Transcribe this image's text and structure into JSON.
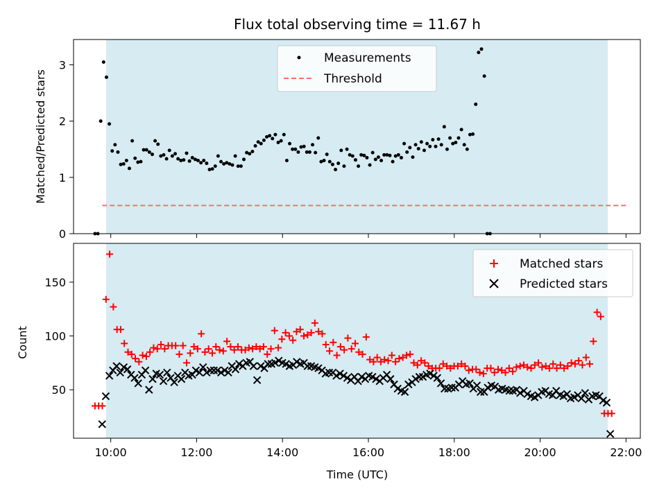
{
  "chart_data": [
    {
      "type": "scatter",
      "title": "Flux total observing time = 11.67 h",
      "xlabel": "",
      "ylabel": "Matched/Predicted stars",
      "xlim": [
        "09:08",
        "22:20"
      ],
      "ylim": [
        0,
        3.45
      ],
      "yticks": [
        "0",
        "1",
        "2",
        "3"
      ],
      "grid": false,
      "legend_position": "upper center",
      "shaded_span": [
        "09:50",
        "21:30"
      ],
      "shade_color": "#add8e6",
      "series": [
        {
          "name": "Measurements",
          "marker": "point",
          "color": "#000000",
          "points": [
            [
              "09:38",
              0
            ],
            [
              "09:42",
              0
            ],
            [
              "09:46",
              2.0
            ],
            [
              "09:50",
              3.05
            ],
            [
              "09:54",
              2.78
            ],
            [
              "09:58",
              1.95
            ],
            [
              "10:02",
              1.47
            ],
            [
              "10:06",
              1.58
            ],
            [
              "10:10",
              1.45
            ],
            [
              "10:14",
              1.23
            ],
            [
              "10:18",
              1.24
            ],
            [
              "10:22",
              1.3
            ],
            [
              "10:26",
              1.16
            ],
            [
              "10:30",
              1.65
            ],
            [
              "10:34",
              1.34
            ],
            [
              "10:38",
              1.27
            ],
            [
              "10:42",
              1.28
            ],
            [
              "10:46",
              1.49
            ],
            [
              "10:50",
              1.49
            ],
            [
              "10:54",
              1.45
            ],
            [
              "10:58",
              1.41
            ],
            [
              "11:02",
              1.65
            ],
            [
              "11:06",
              1.59
            ],
            [
              "11:10",
              1.38
            ],
            [
              "11:14",
              1.4
            ],
            [
              "11:18",
              1.33
            ],
            [
              "11:22",
              1.48
            ],
            [
              "11:26",
              1.38
            ],
            [
              "11:30",
              1.42
            ],
            [
              "11:34",
              1.33
            ],
            [
              "11:38",
              1.3
            ],
            [
              "11:42",
              1.31
            ],
            [
              "11:46",
              1.43
            ],
            [
              "11:50",
              1.29
            ],
            [
              "11:54",
              1.35
            ],
            [
              "11:58",
              1.32
            ],
            [
              "12:02",
              1.3
            ],
            [
              "12:06",
              1.26
            ],
            [
              "12:10",
              1.3
            ],
            [
              "12:14",
              1.25
            ],
            [
              "12:18",
              1.14
            ],
            [
              "12:22",
              1.15
            ],
            [
              "12:26",
              1.2
            ],
            [
              "12:30",
              1.38
            ],
            [
              "12:34",
              1.28
            ],
            [
              "12:38",
              1.24
            ],
            [
              "12:42",
              1.26
            ],
            [
              "12:46",
              1.24
            ],
            [
              "12:50",
              1.22
            ],
            [
              "12:54",
              1.38
            ],
            [
              "12:58",
              1.2
            ],
            [
              "13:02",
              1.2
            ],
            [
              "13:06",
              1.32
            ],
            [
              "13:10",
              1.44
            ],
            [
              "13:14",
              1.42
            ],
            [
              "13:18",
              1.46
            ],
            [
              "13:22",
              1.56
            ],
            [
              "13:26",
              1.63
            ],
            [
              "13:30",
              1.6
            ],
            [
              "13:34",
              1.66
            ],
            [
              "13:38",
              1.72
            ],
            [
              "13:42",
              1.74
            ],
            [
              "13:46",
              1.69
            ],
            [
              "13:50",
              1.76
            ],
            [
              "13:54",
              1.62
            ],
            [
              "13:58",
              1.65
            ],
            [
              "14:02",
              1.76
            ],
            [
              "14:06",
              1.3
            ],
            [
              "14:10",
              1.6
            ],
            [
              "14:14",
              1.5
            ],
            [
              "14:18",
              1.5
            ],
            [
              "14:22",
              1.45
            ],
            [
              "14:26",
              1.54
            ],
            [
              "14:30",
              1.55
            ],
            [
              "14:34",
              1.45
            ],
            [
              "14:38",
              1.45
            ],
            [
              "14:42",
              1.58
            ],
            [
              "14:46",
              1.44
            ],
            [
              "14:50",
              1.7
            ],
            [
              "14:54",
              1.28
            ],
            [
              "14:58",
              1.3
            ],
            [
              "15:02",
              1.41
            ],
            [
              "15:06",
              1.28
            ],
            [
              "15:10",
              1.23
            ],
            [
              "15:14",
              1.14
            ],
            [
              "15:18",
              1.25
            ],
            [
              "15:22",
              1.48
            ],
            [
              "15:26",
              1.2
            ],
            [
              "15:30",
              1.5
            ],
            [
              "15:34",
              1.4
            ],
            [
              "15:38",
              1.38
            ],
            [
              "15:42",
              1.31
            ],
            [
              "15:46",
              1.2
            ],
            [
              "15:50",
              1.4
            ],
            [
              "15:54",
              1.39
            ],
            [
              "15:58",
              1.35
            ],
            [
              "16:02",
              1.22
            ],
            [
              "16:06",
              1.44
            ],
            [
              "16:10",
              1.32
            ],
            [
              "16:14",
              1.36
            ],
            [
              "16:18",
              1.3
            ],
            [
              "16:22",
              1.4
            ],
            [
              "16:26",
              1.4
            ],
            [
              "16:30",
              1.39
            ],
            [
              "16:34",
              1.28
            ],
            [
              "16:38",
              1.38
            ],
            [
              "16:42",
              1.4
            ],
            [
              "16:46",
              1.35
            ],
            [
              "16:50",
              1.6
            ],
            [
              "16:54",
              1.45
            ],
            [
              "16:58",
              1.53
            ],
            [
              "17:02",
              1.36
            ],
            [
              "17:06",
              1.58
            ],
            [
              "17:10",
              1.51
            ],
            [
              "17:14",
              1.63
            ],
            [
              "17:18",
              1.48
            ],
            [
              "17:22",
              1.6
            ],
            [
              "17:26",
              1.55
            ],
            [
              "17:30",
              1.67
            ],
            [
              "17:34",
              1.55
            ],
            [
              "17:38",
              1.68
            ],
            [
              "17:42",
              1.58
            ],
            [
              "17:46",
              1.9
            ],
            [
              "17:50",
              1.5
            ],
            [
              "17:54",
              1.7
            ],
            [
              "17:58",
              1.6
            ],
            [
              "18:02",
              1.62
            ],
            [
              "18:06",
              1.7
            ],
            [
              "18:10",
              1.85
            ],
            [
              "18:14",
              1.58
            ],
            [
              "18:18",
              1.5
            ],
            [
              "18:22",
              1.76
            ],
            [
              "18:26",
              1.77
            ],
            [
              "18:30",
              2.3
            ],
            [
              "18:34",
              3.22
            ],
            [
              "18:38",
              3.28
            ],
            [
              "18:42",
              2.8
            ],
            [
              "18:46",
              0
            ],
            [
              "18:50",
              0
            ]
          ]
        },
        {
          "name": "Threshold",
          "marker": "dashed-line",
          "color": "#ff6b6b",
          "points": [
            [
              "09:48",
              0.5
            ],
            [
              "22:00",
              0.5
            ]
          ]
        }
      ]
    },
    {
      "type": "scatter",
      "title": "",
      "xlabel": "Time (UTC)",
      "ylabel": "Count",
      "xlim": [
        "09:08",
        "22:20"
      ],
      "ylim": [
        5,
        186
      ],
      "yticks": [
        "50",
        "100",
        "150"
      ],
      "xticks": [
        "10:00",
        "12:00",
        "14:00",
        "16:00",
        "18:00",
        "20:00",
        "22:00"
      ],
      "grid": false,
      "legend_position": "upper right",
      "shaded_span": [
        "09:50",
        "21:30"
      ],
      "shade_color": "#add8e6",
      "series": [
        {
          "name": "Matched stars",
          "marker": "plus",
          "color": "#ff0000",
          "values": [
            35,
            35,
            35,
            134,
            176,
            127,
            106,
            106,
            93,
            85,
            83,
            79,
            76,
            82,
            81,
            85,
            89,
            88,
            92,
            88,
            91,
            91,
            91,
            83,
            91,
            75,
            84,
            90,
            88,
            102,
            85,
            88,
            84,
            90,
            87,
            86,
            95,
            90,
            87,
            90,
            87,
            87,
            89,
            88,
            90,
            88,
            90,
            83,
            88,
            105,
            89,
            97,
            103,
            100,
            96,
            104,
            106,
            100,
            101,
            103,
            112,
            104,
            102,
            92,
            86,
            94,
            82,
            90,
            87,
            98,
            88,
            93,
            85,
            83,
            99,
            78,
            76,
            80,
            76,
            78,
            77,
            82,
            76,
            79,
            80,
            82,
            83,
            75,
            73,
            77,
            75,
            72,
            70,
            70,
            70,
            74,
            72,
            70,
            72,
            72,
            74,
            72,
            68,
            69,
            69,
            66,
            65,
            70,
            70,
            66,
            69,
            68,
            66,
            70,
            67,
            71,
            72,
            73,
            71,
            70,
            73,
            75,
            71,
            72,
            70,
            74,
            70,
            73,
            70,
            72,
            75,
            74,
            77,
            73,
            80,
            74,
            95,
            122,
            118,
            28,
            28,
            28
          ]
        },
        {
          "name": "Predicted stars",
          "marker": "x",
          "color": "#000000",
          "values": [
            18,
            44,
            63,
            68,
            72,
            66,
            71,
            69,
            64,
            61,
            56,
            64,
            68,
            50,
            60,
            65,
            64,
            58,
            66,
            61,
            57,
            63,
            60,
            66,
            63,
            64,
            68,
            66,
            71,
            66,
            68,
            68,
            68,
            66,
            68,
            66,
            72,
            69,
            74,
            72,
            75,
            76,
            72,
            59,
            72,
            70,
            74,
            74,
            75,
            77,
            75,
            74,
            72,
            73,
            76,
            74,
            75,
            72,
            72,
            71,
            70,
            68,
            65,
            66,
            66,
            63,
            65,
            63,
            61,
            59,
            62,
            58,
            62,
            60,
            63,
            62,
            60,
            58,
            61,
            64,
            60,
            55,
            51,
            49,
            48,
            55,
            57,
            60,
            62,
            62,
            64,
            65,
            63,
            61,
            56,
            51,
            51,
            52,
            52,
            55,
            58,
            55,
            56,
            51,
            54,
            48,
            48,
            52,
            54,
            53,
            50,
            51,
            50,
            49,
            49,
            50,
            47,
            49,
            46,
            44,
            43,
            45,
            48,
            49,
            46,
            45,
            49,
            45,
            44,
            46,
            42,
            43,
            45,
            42,
            47,
            41,
            44,
            45,
            44,
            40,
            38,
            9
          ]
        }
      ]
    }
  ]
}
